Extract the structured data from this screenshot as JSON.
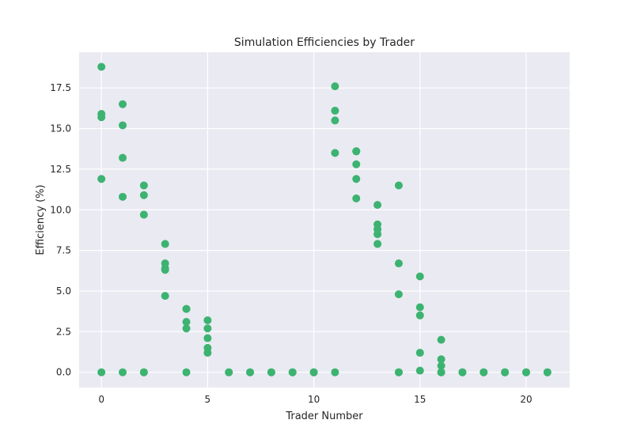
{
  "chart_data": {
    "type": "scatter",
    "title": "Simulation Efficiencies by Trader",
    "xlabel": "Trader Number",
    "ylabel": "Efficiency (%)",
    "xlim": [
      -1.05,
      22.05
    ],
    "ylim": [
      -0.94,
      19.7
    ],
    "xticks": [
      0,
      5,
      10,
      15,
      20
    ],
    "xtick_labels": [
      "0",
      "5",
      "10",
      "15",
      "20"
    ],
    "yticks": [
      0,
      2.5,
      5,
      7.5,
      10,
      12.5,
      15,
      17.5
    ],
    "ytick_labels": [
      "0.0",
      "2.5",
      "5.0",
      "7.5",
      "10.0",
      "12.5",
      "15.0",
      "17.5"
    ],
    "grid": true,
    "style": "seaborn-darkgrid",
    "colors": {
      "background": "#eaeaf2",
      "grid": "#ffffff",
      "marker": "#3cb371"
    },
    "series": [
      {
        "points": [
          [
            0,
            18.8
          ],
          [
            0,
            15.9
          ],
          [
            0,
            15.7
          ],
          [
            0,
            11.9
          ],
          [
            0,
            0
          ],
          [
            1,
            16.5
          ],
          [
            1,
            15.2
          ],
          [
            1,
            13.2
          ],
          [
            1,
            10.8
          ],
          [
            1,
            0
          ],
          [
            2,
            11.5
          ],
          [
            2,
            10.9
          ],
          [
            2,
            9.7
          ],
          [
            2,
            0
          ],
          [
            2,
            0
          ],
          [
            3,
            7.9
          ],
          [
            3,
            6.7
          ],
          [
            3,
            6.4
          ],
          [
            3,
            6.3
          ],
          [
            3,
            4.7
          ],
          [
            4,
            3.9
          ],
          [
            4,
            3.9
          ],
          [
            4,
            3.1
          ],
          [
            4,
            2.7
          ],
          [
            4,
            0
          ],
          [
            5,
            3.2
          ],
          [
            5,
            2.7
          ],
          [
            5,
            2.1
          ],
          [
            5,
            1.5
          ],
          [
            5,
            1.2
          ],
          [
            6,
            0
          ],
          [
            6,
            0
          ],
          [
            7,
            0
          ],
          [
            7,
            0
          ],
          [
            8,
            0
          ],
          [
            8,
            0
          ],
          [
            9,
            0
          ],
          [
            9,
            0
          ],
          [
            10,
            0
          ],
          [
            10,
            0
          ],
          [
            11,
            17.6
          ],
          [
            11,
            16.1
          ],
          [
            11,
            15.5
          ],
          [
            11,
            13.5
          ],
          [
            11,
            0
          ],
          [
            12,
            13.6
          ],
          [
            12,
            13.6
          ],
          [
            12,
            12.8
          ],
          [
            12,
            11.9
          ],
          [
            12,
            10.7
          ],
          [
            13,
            10.3
          ],
          [
            13,
            9.1
          ],
          [
            13,
            8.8
          ],
          [
            13,
            8.5
          ],
          [
            13,
            7.9
          ],
          [
            14,
            11.5
          ],
          [
            14,
            6.7
          ],
          [
            14,
            4.8
          ],
          [
            14,
            0
          ],
          [
            14,
            0
          ],
          [
            15,
            5.9
          ],
          [
            15,
            4.0
          ],
          [
            15,
            3.5
          ],
          [
            15,
            1.2
          ],
          [
            15,
            0.1
          ],
          [
            16,
            2.0
          ],
          [
            16,
            0.8
          ],
          [
            16,
            0.4
          ],
          [
            16,
            0
          ],
          [
            16,
            0
          ],
          [
            17,
            0
          ],
          [
            17,
            0
          ],
          [
            18,
            0
          ],
          [
            18,
            0
          ],
          [
            19,
            0
          ],
          [
            19,
            0
          ],
          [
            20,
            0
          ],
          [
            20,
            0
          ],
          [
            21,
            0
          ],
          [
            21,
            0
          ]
        ]
      }
    ]
  }
}
